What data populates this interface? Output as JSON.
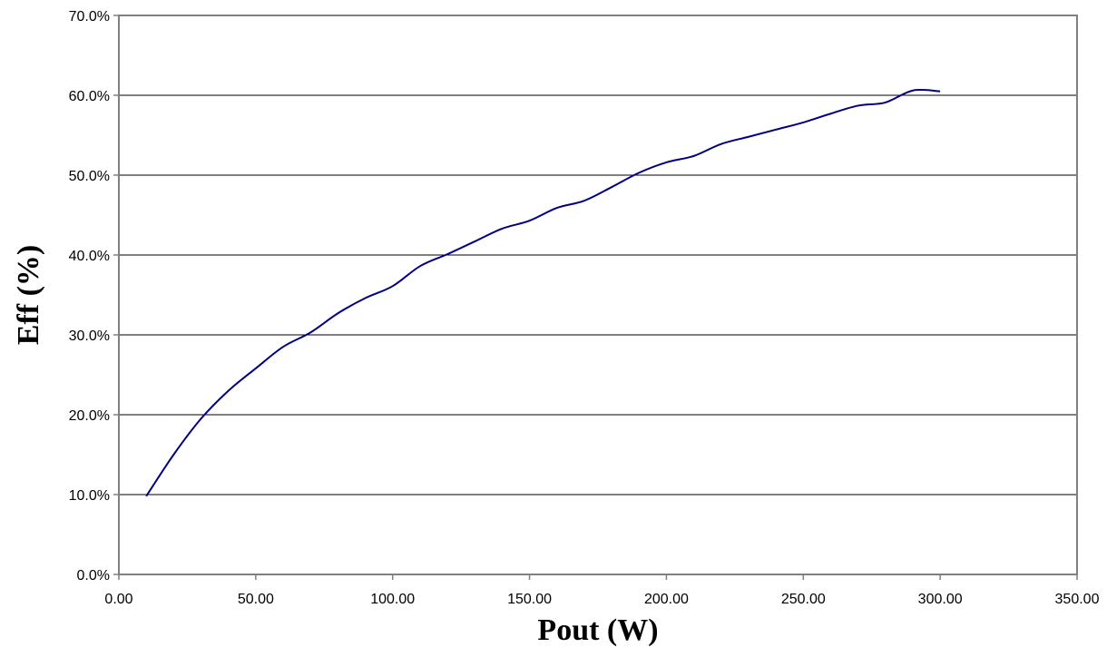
{
  "chart_data": {
    "type": "line",
    "title": "",
    "xlabel": "Pout (W)",
    "ylabel": "Eff (%)",
    "xlim": [
      0,
      350
    ],
    "ylim": [
      0,
      0.7
    ],
    "x_ticks": [
      0,
      50,
      100,
      150,
      200,
      250,
      300,
      350
    ],
    "x_tick_labels": [
      "0.00",
      "50.00",
      "100.00",
      "150.00",
      "200.00",
      "250.00",
      "300.00",
      "350.00"
    ],
    "y_ticks": [
      0,
      0.1,
      0.2,
      0.3,
      0.4,
      0.5,
      0.6,
      0.7
    ],
    "y_tick_labels": [
      "0.0%",
      "10.0%",
      "20.0%",
      "30.0%",
      "40.0%",
      "50.0%",
      "60.0%",
      "70.0%"
    ],
    "grid": "horizontal",
    "legend": "none",
    "line_color": "#000080",
    "series": [
      {
        "x": [
          10,
          20,
          30,
          40,
          50,
          60,
          70,
          80,
          90,
          100,
          110,
          120,
          130,
          140,
          150,
          160,
          170,
          180,
          190,
          200,
          210,
          220,
          230,
          240,
          250,
          260,
          270,
          280,
          290,
          300
        ],
        "y": [
          0.098,
          0.15,
          0.195,
          0.23,
          0.258,
          0.285,
          0.303,
          0.327,
          0.346,
          0.361,
          0.386,
          0.401,
          0.417,
          0.433,
          0.443,
          0.459,
          0.468,
          0.485,
          0.503,
          0.516,
          0.524,
          0.539,
          0.548,
          0.557,
          0.566,
          0.577,
          0.587,
          0.591,
          0.606,
          0.605
        ]
      }
    ]
  }
}
